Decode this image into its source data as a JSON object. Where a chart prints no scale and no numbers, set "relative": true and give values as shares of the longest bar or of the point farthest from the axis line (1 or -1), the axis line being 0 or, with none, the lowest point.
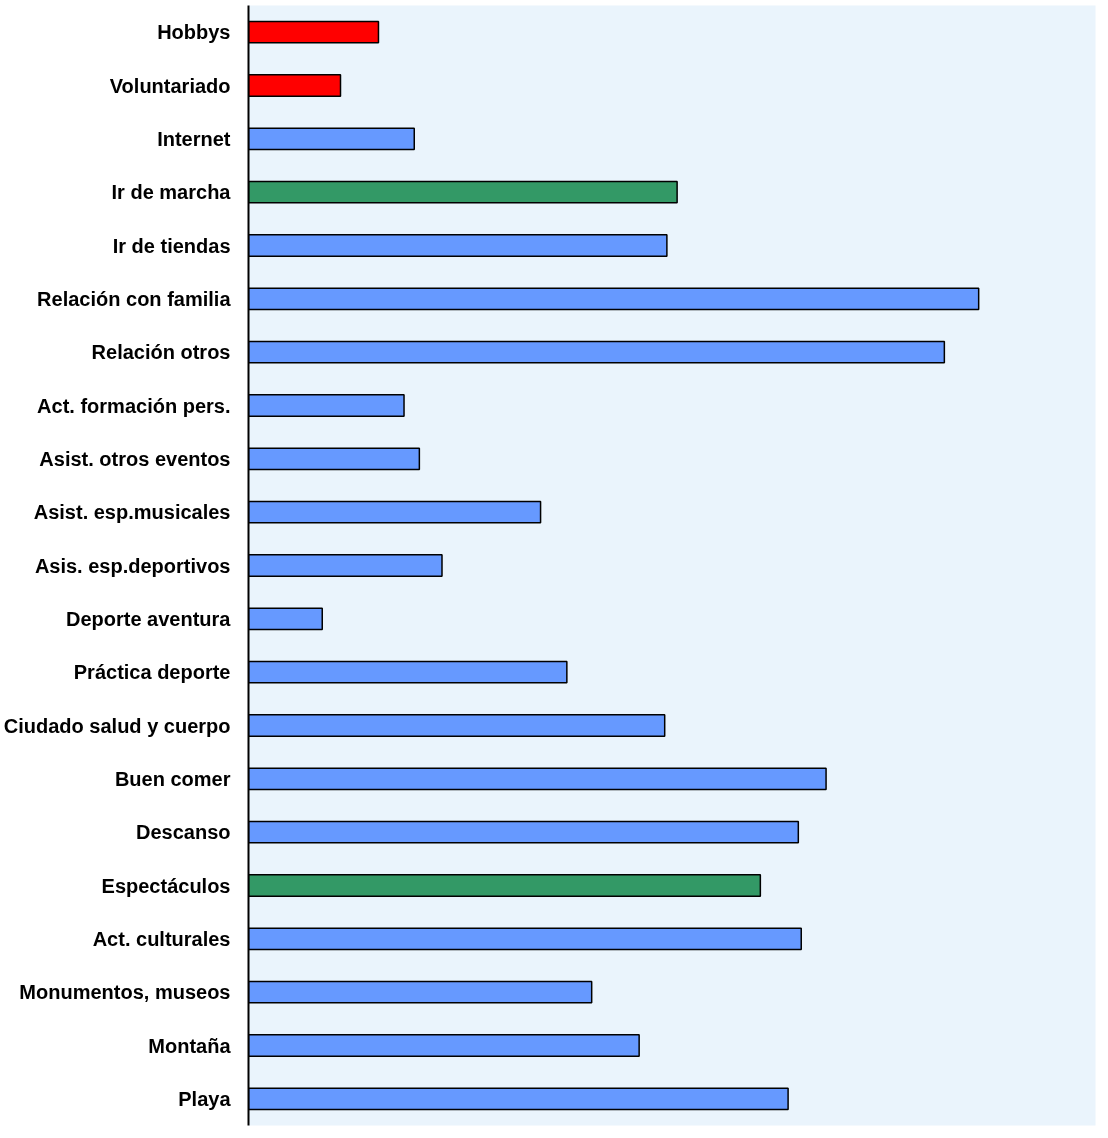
{
  "chart_data": {
    "type": "bar",
    "orientation": "horizontal",
    "relative": true,
    "categories": [
      "Hobbys",
      "Voluntariado",
      "Internet",
      "Ir de marcha",
      "Ir de tiendas",
      "Relación con familia",
      "Relación otros",
      "Act. formación pers.",
      "Asist. otros eventos",
      "Asist. esp.musicales",
      "Asis. esp.deportivos",
      "Deporte aventura",
      "Práctica deporte",
      "Ciudado salud y cuerpo",
      "Buen comer",
      "Descanso",
      "Espectáculos",
      "Act. culturales",
      "Monumentos, museos",
      "Montaña",
      "Playa"
    ],
    "values": [
      0.178,
      0.126,
      0.227,
      0.587,
      0.573,
      1,
      0.953,
      0.213,
      0.234,
      0.4,
      0.265,
      0.101,
      0.436,
      0.57,
      0.791,
      0.753,
      0.701,
      0.757,
      0.47,
      0.535,
      0.739
    ],
    "colors": [
      "#ff0000",
      "#ff0000",
      "#6699ff",
      "#339966",
      "#6699ff",
      "#6699ff",
      "#6699ff",
      "#6699ff",
      "#6699ff",
      "#6699ff",
      "#6699ff",
      "#6699ff",
      "#6699ff",
      "#6699ff",
      "#6699ff",
      "#6699ff",
      "#339966",
      "#6699ff",
      "#6699ff",
      "#6699ff",
      "#6699ff"
    ]
  }
}
